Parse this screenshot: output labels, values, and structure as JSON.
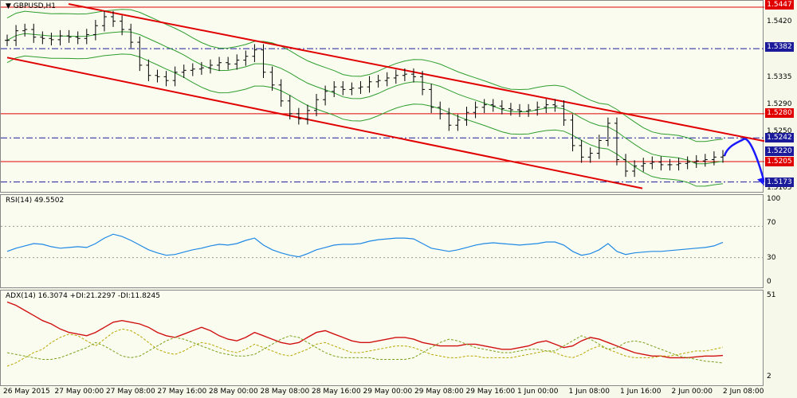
{
  "symbol_title": "GBPUSD,H1",
  "rsi_title": "RSI(14) 49.5502",
  "adx_title": "ADX(14) 16.3074 +DI:21.2297 -DI:11.8245",
  "colors": {
    "background": "#fbfcf0",
    "candle": "#000000",
    "bollinger": "#2e9e2e",
    "channel": "#e00000",
    "level_line": "#e00000",
    "dash_line": "#1a1a9a",
    "forecast": "#1a1aff",
    "rsi": "#1e88e5",
    "adx_main": "#d01010",
    "adx_plus": "#b8a800",
    "adx_minus": "#7aa01a"
  },
  "price_axis_ticks": [
    "1.5420",
    "1.5335",
    "1.5290",
    "1.5250",
    "1.5165"
  ],
  "price_tags": [
    {
      "label": "1.5447",
      "color": "#e00000"
    },
    {
      "label": "1.5382",
      "color": "#1a1a9a"
    },
    {
      "label": "1.5280",
      "color": "#e00000"
    },
    {
      "label": "1.5242",
      "color": "#1a1a9a"
    },
    {
      "label": "1.5220",
      "color": "#1a1a9a"
    },
    {
      "label": "1.5205",
      "color": "#e00000"
    },
    {
      "label": "1.5173",
      "color": "#1a1a9a"
    }
  ],
  "rsi_axis_ticks": [
    "100",
    "70",
    "30",
    "0"
  ],
  "adx_axis_ticks": [
    "51",
    "2"
  ],
  "x_labels": [
    "26 May 2015",
    "27 May 00:00",
    "27 May 08:00",
    "27 May 16:00",
    "28 May 00:00",
    "28 May 08:00",
    "28 May 16:00",
    "29 May 00:00",
    "29 May 08:00",
    "29 May 16:00",
    "1 Jun 00:00",
    "1 Jun 08:00",
    "1 Jun 16:00",
    "2 Jun 00:00",
    "2 Jun 08:00"
  ],
  "chart_data": {
    "type": "line",
    "title": "GBPUSD,H1",
    "price_range": [
      1.516,
      1.5452
    ],
    "horizontal_levels": [
      {
        "value": 1.5447,
        "style": "solid",
        "color": "red"
      },
      {
        "value": 1.5382,
        "style": "dash-dot",
        "color": "navy"
      },
      {
        "value": 1.528,
        "style": "solid",
        "color": "red"
      },
      {
        "value": 1.5242,
        "style": "dash-dot",
        "color": "navy"
      },
      {
        "value": 1.5205,
        "style": "solid",
        "color": "red"
      },
      {
        "value": 1.5173,
        "style": "dash-dot",
        "color": "navy"
      }
    ],
    "close_series": [
      1.5395,
      1.541,
      1.5412,
      1.54,
      1.5398,
      1.5396,
      1.5402,
      1.54,
      1.5398,
      1.5404,
      1.5418,
      1.5432,
      1.5425,
      1.5412,
      1.5392,
      1.5356,
      1.534,
      1.5338,
      1.5332,
      1.5345,
      1.5348,
      1.535,
      1.5352,
      1.5356,
      1.536,
      1.5358,
      1.5364,
      1.537,
      1.538,
      1.5345,
      1.5325,
      1.53,
      1.528,
      1.5272,
      1.5285,
      1.5302,
      1.5315,
      1.5322,
      1.5318,
      1.532,
      1.5322,
      1.533,
      1.5332,
      1.5336,
      1.534,
      1.5342,
      1.5338,
      1.5318,
      1.529,
      1.528,
      1.5262,
      1.527,
      1.5282,
      1.529,
      1.5294,
      1.5292,
      1.5288,
      1.5286,
      1.5284,
      1.5286,
      1.529,
      1.5294,
      1.5292,
      1.527,
      1.523,
      1.5212,
      1.5218,
      1.5238,
      1.5265,
      1.5208,
      1.519,
      1.5198,
      1.5202,
      1.5204,
      1.52,
      1.52,
      1.5202,
      1.5204,
      1.5206,
      1.5208,
      1.5212,
      1.5214
    ],
    "forecast_path": [
      [
        1.5214,
        1.5205
      ],
      [
        1.523,
        1.5243
      ],
      [
        1.524,
        1.524
      ],
      [
        1.521,
        1.518
      ],
      [
        1.5172,
        1.517
      ]
    ],
    "rsi": {
      "ylim": [
        0,
        100
      ],
      "levels": [
        70,
        30
      ],
      "values": [
        38,
        42,
        45,
        48,
        47,
        44,
        42,
        43,
        44,
        43,
        48,
        55,
        60,
        57,
        52,
        46,
        40,
        36,
        33,
        34,
        37,
        40,
        42,
        45,
        47,
        46,
        48,
        52,
        55,
        46,
        40,
        36,
        33,
        31,
        35,
        40,
        43,
        46,
        47,
        47,
        48,
        51,
        53,
        54,
        55,
        55,
        54,
        48,
        42,
        40,
        38,
        40,
        43,
        46,
        48,
        49,
        48,
        47,
        46,
        47,
        48,
        50,
        50,
        46,
        38,
        33,
        35,
        40,
        48,
        38,
        34,
        36,
        37,
        38,
        38,
        39,
        40,
        41,
        42,
        43,
        45,
        49.5502
      ]
    },
    "adx": {
      "series": [
        {
          "name": "ADX(14)",
          "values": [
            48,
            46,
            43,
            40,
            37,
            35,
            32,
            30,
            29,
            28,
            30,
            33,
            36,
            37,
            36,
            35,
            33,
            30,
            28,
            27,
            29,
            31,
            33,
            31,
            28,
            26,
            25,
            27,
            30,
            28,
            26,
            24,
            23,
            24,
            27,
            30,
            31,
            29,
            27,
            25,
            24,
            24,
            25,
            26,
            27,
            27,
            26,
            24,
            23,
            22,
            22,
            22,
            23,
            23,
            22,
            21,
            20,
            20,
            21,
            22,
            24,
            25,
            23,
            21,
            22,
            25,
            27,
            26,
            24,
            22,
            20,
            18,
            17,
            16,
            16,
            15,
            15,
            15,
            15.5,
            16,
            16,
            16.3074
          ]
        },
        {
          "name": "+DI",
          "values": [
            10,
            12,
            15,
            18,
            20,
            24,
            27,
            29,
            28,
            25,
            22,
            26,
            30,
            32,
            31,
            28,
            24,
            20,
            18,
            17,
            19,
            22,
            24,
            23,
            21,
            19,
            18,
            20,
            23,
            21,
            19,
            17,
            16,
            18,
            20,
            23,
            24,
            22,
            20,
            18,
            18,
            19,
            20,
            21,
            22,
            22,
            21,
            19,
            17,
            16,
            15,
            15,
            16,
            16,
            15,
            15,
            15,
            15,
            16,
            17,
            18,
            19,
            18,
            16,
            15,
            17,
            20,
            22,
            20,
            18,
            16,
            15,
            15,
            15,
            16,
            16,
            17,
            18,
            19,
            19,
            20,
            21.2297
          ]
        },
        {
          "name": "-DI",
          "values": [
            18,
            17,
            16,
            15,
            14,
            14,
            15,
            17,
            19,
            21,
            24,
            22,
            19,
            16,
            15,
            16,
            19,
            22,
            25,
            27,
            26,
            24,
            22,
            20,
            18,
            17,
            16,
            16,
            17,
            20,
            23,
            26,
            28,
            27,
            24,
            21,
            18,
            16,
            15,
            15,
            15,
            15,
            14,
            14,
            14,
            14,
            15,
            18,
            21,
            24,
            26,
            25,
            23,
            21,
            20,
            19,
            18,
            18,
            19,
            20,
            20,
            19,
            19,
            22,
            25,
            28,
            26,
            23,
            20,
            21,
            24,
            25,
            24,
            22,
            20,
            18,
            16,
            15,
            14,
            13,
            12.5,
            11.8245
          ]
        }
      ]
    }
  }
}
